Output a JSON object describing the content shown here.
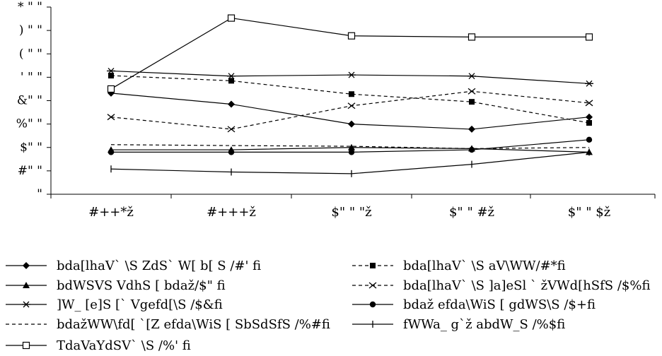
{
  "chart_data": {
    "type": "line",
    "title": "",
    "xlabel": "",
    "ylabel": "",
    "ylim": [
      0,
      800
    ],
    "y_ticks": [
      0,
      100,
      200,
      300,
      400,
      500,
      600,
      700,
      800
    ],
    "y_tick_labels": [
      "\"",
      "#\" \"",
      "$\" \"",
      "%\" \"",
      "&\" \"",
      "' \" \"",
      "( \" \"",
      ") \" \"",
      "* \" \""
    ],
    "categories": [
      "#++*ž",
      "#+++ž",
      "$\" \" \"ž",
      "$\" \" #ž",
      "$\" \" $ž"
    ],
    "legend_position": "bottom",
    "grid": false,
    "series": [
      {
        "name": "bda[lhaV` \\S ZdS` W[ b[ S /#' fi",
        "values": [
          432,
          385,
          300,
          278,
          330
        ],
        "style": "solid",
        "marker": "diamond"
      },
      {
        "name": "bda[lhaV` \\S aV\\WW/#*fi",
        "values": [
          507,
          485,
          428,
          395,
          305
        ],
        "style": "dashed",
        "marker": "square"
      },
      {
        "name": "bdWSVS VdhS [ bdaž/$\" fi",
        "values": [
          190,
          190,
          200,
          195,
          180
        ],
        "style": "solid",
        "marker": "triangle"
      },
      {
        "name": "bda[lhaV` \\S ]a]eSl ` žVWd[hSfS /$%fi",
        "values": [
          330,
          278,
          378,
          440,
          390
        ],
        "style": "dashed",
        "marker": "x"
      },
      {
        "name": "]W_ [e]S [` Vgefd[\\S /$&fi",
        "values": [
          527,
          505,
          510,
          505,
          473
        ],
        "style": "solid",
        "marker": "star"
      },
      {
        "name": "bdaž efda\\WiS [ gdWS\\S /$+fi",
        "values": [
          180,
          180,
          180,
          190,
          233
        ],
        "style": "solid",
        "marker": "circle"
      },
      {
        "name": "bdažWW\\fd[ `[Z efda\\WiS [ SbSdSfS /%#fi",
        "values": [
          212,
          208,
          205,
          195,
          200
        ],
        "style": "dashed",
        "marker": "none"
      },
      {
        "name": "fWWa_ g`ž abdW_S /%$fi",
        "values": [
          108,
          95,
          88,
          128,
          180
        ],
        "style": "solid",
        "marker": "plus"
      },
      {
        "name": "TdaVaYdSV` \\S /%' fi",
        "values": [
          450,
          753,
          677,
          672,
          672
        ],
        "style": "solid",
        "marker": "open-square"
      }
    ]
  }
}
